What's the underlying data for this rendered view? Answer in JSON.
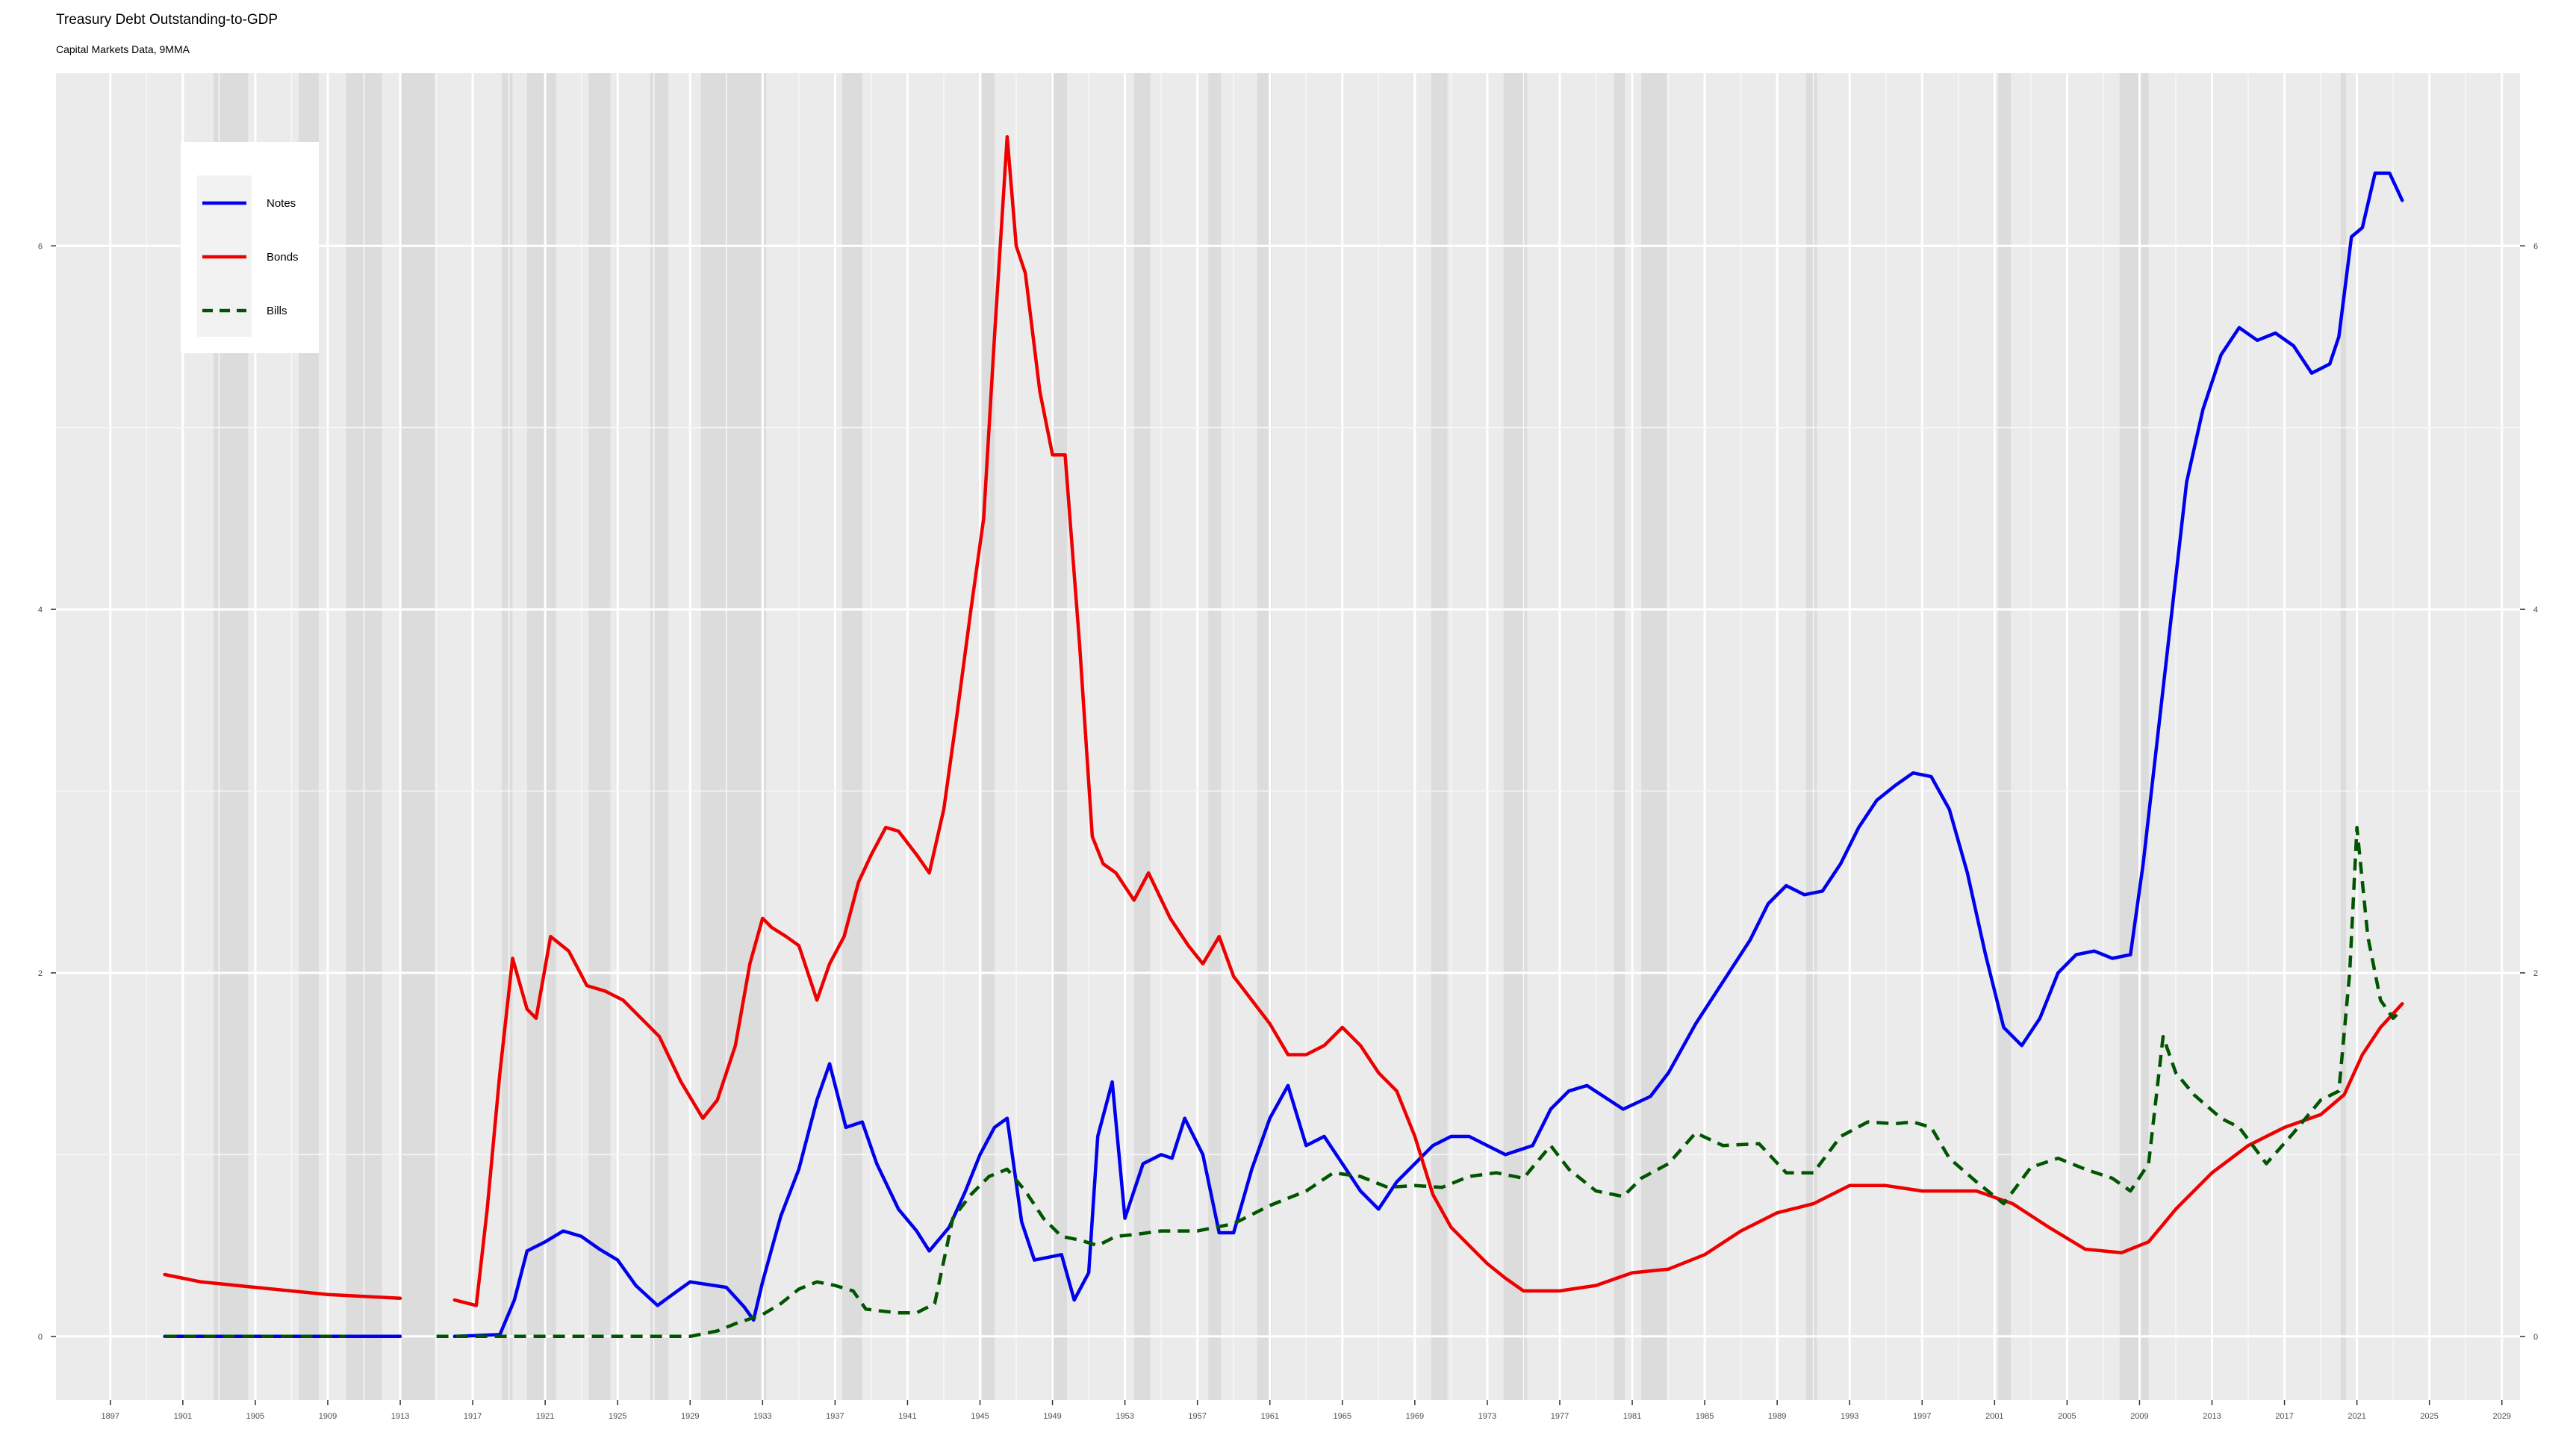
{
  "chart_data": {
    "type": "line",
    "title": "Treasury Debt Outstanding-to-GDP",
    "subtitle": "Capital Markets Data, 9MMA",
    "xlabel": "",
    "ylabel": "",
    "xlim": [
      1894,
      2030
    ],
    "ylim": [
      -0.35,
      6.95
    ],
    "x_ticks": [
      1897,
      1901,
      1905,
      1909,
      1913,
      1917,
      1921,
      1925,
      1929,
      1933,
      1937,
      1941,
      1945,
      1949,
      1953,
      1957,
      1961,
      1965,
      1969,
      1973,
      1977,
      1981,
      1985,
      1989,
      1993,
      1997,
      2001,
      2005,
      2009,
      2013,
      2017,
      2021,
      2025,
      2029
    ],
    "y_ticks": [
      0,
      2,
      4,
      6
    ],
    "grid": true,
    "legend_position": "top-left",
    "recessions": [
      [
        1902.7,
        1904.6
      ],
      [
        1907.4,
        1908.5
      ],
      [
        1910.0,
        1912.0
      ],
      [
        1913.0,
        1914.9
      ],
      [
        1918.6,
        1919.2
      ],
      [
        1920.0,
        1921.6
      ],
      [
        1923.4,
        1924.6
      ],
      [
        1926.8,
        1927.8
      ],
      [
        1929.6,
        1933.2
      ],
      [
        1937.4,
        1938.5
      ],
      [
        1945.1,
        1945.8
      ],
      [
        1948.9,
        1949.8
      ],
      [
        1953.5,
        1954.4
      ],
      [
        1957.6,
        1958.3
      ],
      [
        1960.3,
        1961.1
      ],
      [
        1969.9,
        1970.8
      ],
      [
        1973.9,
        1975.2
      ],
      [
        1980.0,
        1980.6
      ],
      [
        1981.5,
        1982.9
      ],
      [
        1990.6,
        1991.2
      ],
      [
        2001.2,
        2001.9
      ],
      [
        2007.9,
        2009.5
      ],
      [
        2020.1,
        2020.4
      ]
    ],
    "series": [
      {
        "name": "Notes",
        "color": "#0000ee",
        "dash": "solid",
        "x": [
          1900,
          1905,
          1910,
          1913,
          1916,
          1918.5,
          1919.3,
          1920,
          1921,
          1922,
          1923,
          1924,
          1925,
          1926,
          1927.2,
          1928.3,
          1929,
          1931,
          1932,
          1932.5,
          1933,
          1934,
          1935,
          1936,
          1936.7,
          1937.6,
          1938.5,
          1939.3,
          1940.5,
          1941.5,
          1942.2,
          1943.3,
          1944.2,
          1945,
          1945.8,
          1946.5,
          1947.3,
          1948,
          1949.5,
          1950.2,
          1951,
          1951.5,
          1952.3,
          1953,
          1954,
          1955,
          1955.6,
          1956.3,
          1957.3,
          1958.2,
          1959,
          1960,
          1961,
          1962,
          1963,
          1964,
          1965,
          1966,
          1967,
          1968,
          1969,
          1970,
          1971,
          1972,
          1973,
          1974,
          1975.5,
          1976.5,
          1977.5,
          1978.5,
          1980.5,
          1982,
          1983,
          1984.5,
          1986,
          1987.5,
          1988.5,
          1989.5,
          1990.5,
          1991.5,
          1992.5,
          1993.5,
          1994.5,
          1995.5,
          1996.5,
          1997.5,
          1998.5,
          1999.5,
          2000.5,
          2001.5,
          2002.5,
          2003.5,
          2004.5,
          2005.5,
          2006.5,
          2007.5,
          2008.5,
          2009.2,
          2010,
          2010.8,
          2011.6,
          2012.5,
          2013.5,
          2014.5,
          2015.5,
          2016.5,
          2017.5,
          2018.5,
          2019.5,
          2020,
          2020.7,
          2021.3,
          2022,
          2022.8,
          2023.5
        ],
        "y": [
          0.0,
          0.0,
          0.0,
          0.0,
          0.0,
          0.01,
          0.2,
          0.47,
          0.52,
          0.58,
          0.55,
          0.48,
          0.42,
          0.28,
          0.17,
          0.25,
          0.3,
          0.27,
          0.16,
          0.09,
          0.3,
          0.66,
          0.92,
          1.3,
          1.5,
          1.15,
          1.18,
          0.95,
          0.7,
          0.58,
          0.47,
          0.6,
          0.8,
          1.0,
          1.15,
          1.2,
          0.63,
          0.42,
          0.45,
          0.2,
          0.35,
          1.1,
          1.4,
          0.65,
          0.95,
          1.0,
          0.98,
          1.2,
          1.0,
          0.57,
          0.57,
          0.92,
          1.2,
          1.38,
          1.05,
          1.1,
          0.95,
          0.8,
          0.7,
          0.85,
          0.95,
          1.05,
          1.1,
          1.1,
          1.05,
          1.0,
          1.05,
          1.25,
          1.35,
          1.38,
          1.25,
          1.32,
          1.45,
          1.72,
          1.95,
          2.18,
          2.38,
          2.48,
          2.43,
          2.45,
          2.6,
          2.8,
          2.95,
          3.03,
          3.1,
          3.08,
          2.9,
          2.55,
          2.1,
          1.7,
          1.6,
          1.75,
          2.0,
          2.1,
          2.12,
          2.08,
          2.1,
          2.6,
          3.3,
          4.0,
          4.7,
          5.1,
          5.4,
          5.55,
          5.48,
          5.52,
          5.45,
          5.3,
          5.35,
          5.5,
          6.05,
          6.1,
          6.4,
          6.4,
          6.25
        ]
      },
      {
        "name": "Bonds",
        "color": "#ee0000",
        "dash": "solid",
        "x": [
          1900,
          1902,
          1905,
          1909,
          1913,
          1916,
          1917.2,
          1917.8,
          1918.5,
          1919.2,
          1920,
          1920.5,
          1921.3,
          1922.3,
          1923.3,
          1924.3,
          1925.3,
          1926.3,
          1927.3,
          1928.5,
          1929.7,
          1930.5,
          1931.5,
          1932.3,
          1933,
          1933.5,
          1934.3,
          1935,
          1936,
          1936.7,
          1937.5,
          1938.3,
          1939,
          1939.8,
          1940.5,
          1941.5,
          1942.2,
          1943,
          1943.7,
          1944.5,
          1945.2,
          1945.8,
          1946.5,
          1947,
          1947.5,
          1948.3,
          1949,
          1949.7,
          1950.5,
          1951.2,
          1951.8,
          1952.5,
          1953.5,
          1954.3,
          1955.5,
          1956.5,
          1957.3,
          1958.2,
          1959,
          1960,
          1961,
          1962,
          1963,
          1964,
          1965,
          1966,
          1967,
          1968,
          1969,
          1970,
          1971,
          1972,
          1973,
          1974,
          1975,
          1977,
          1979,
          1981,
          1983,
          1985,
          1987,
          1989,
          1991,
          1993,
          1995,
          1997,
          2000,
          2002,
          2004,
          2006,
          2008,
          2009.5,
          2011,
          2013,
          2015,
          2017,
          2019,
          2020.3,
          2021.3,
          2022.3,
          2023.5
        ],
        "y": [
          0.34,
          0.3,
          0.27,
          0.23,
          0.21,
          0.2,
          0.17,
          0.7,
          1.45,
          2.08,
          1.8,
          1.75,
          2.2,
          2.12,
          1.93,
          1.9,
          1.85,
          1.75,
          1.65,
          1.4,
          1.2,
          1.3,
          1.6,
          2.05,
          2.3,
          2.25,
          2.2,
          2.15,
          1.85,
          2.05,
          2.2,
          2.5,
          2.65,
          2.8,
          2.78,
          2.65,
          2.55,
          2.9,
          3.4,
          4.0,
          4.5,
          5.5,
          6.6,
          6.0,
          5.85,
          5.2,
          4.85,
          4.85,
          3.8,
          2.75,
          2.6,
          2.55,
          2.4,
          2.55,
          2.3,
          2.15,
          2.05,
          2.2,
          1.98,
          1.85,
          1.72,
          1.55,
          1.55,
          1.6,
          1.7,
          1.6,
          1.45,
          1.35,
          1.1,
          0.78,
          0.6,
          0.5,
          0.4,
          0.32,
          0.25,
          0.25,
          0.28,
          0.35,
          0.37,
          0.45,
          0.58,
          0.68,
          0.73,
          0.83,
          0.83,
          0.8,
          0.8,
          0.73,
          0.6,
          0.48,
          0.46,
          0.52,
          0.7,
          0.9,
          1.05,
          1.15,
          1.22,
          1.33,
          1.55,
          1.7,
          1.83
        ]
      },
      {
        "name": "Bills",
        "color": "#005500",
        "dash": "dashed",
        "x": [
          1900,
          1905,
          1910,
          1915,
          1920,
          1925,
          1929,
          1930.5,
          1931.5,
          1933,
          1934,
          1935,
          1936,
          1937,
          1938,
          1938.7,
          1939.5,
          1940.5,
          1941.5,
          1942.5,
          1943.5,
          1944.5,
          1945.5,
          1946.5,
          1947.5,
          1948.5,
          1949.5,
          1950.5,
          1951.5,
          1952.5,
          1953.5,
          1955,
          1957,
          1959,
          1961,
          1963,
          1964.5,
          1966,
          1967.5,
          1969,
          1970.5,
          1972,
          1973.5,
          1975,
          1976.5,
          1977.5,
          1979,
          1980.5,
          1981.5,
          1983,
          1984.5,
          1986,
          1988,
          1989.5,
          1991,
          1992.5,
          1994,
          1995.5,
          1996.5,
          1997.5,
          1998.5,
          2000,
          2001.5,
          2003,
          2004.5,
          2006,
          2007.5,
          2008.5,
          2009.5,
          2010.3,
          2011,
          2012,
          2013.5,
          2014.5,
          2016,
          2017.5,
          2019,
          2020,
          2020.6,
          2021,
          2021.6,
          2022.3,
          2023,
          2023.5
        ],
        "y": [
          0.0,
          0.0,
          0.0,
          0.0,
          0.0,
          0.0,
          0.0,
          0.03,
          0.07,
          0.12,
          0.18,
          0.26,
          0.3,
          0.28,
          0.25,
          0.15,
          0.14,
          0.13,
          0.13,
          0.18,
          0.65,
          0.78,
          0.88,
          0.92,
          0.8,
          0.65,
          0.55,
          0.53,
          0.5,
          0.55,
          0.56,
          0.58,
          0.58,
          0.62,
          0.72,
          0.8,
          0.9,
          0.88,
          0.82,
          0.83,
          0.82,
          0.88,
          0.9,
          0.87,
          1.05,
          0.92,
          0.8,
          0.77,
          0.87,
          0.95,
          1.12,
          1.05,
          1.06,
          0.9,
          0.9,
          1.1,
          1.18,
          1.17,
          1.18,
          1.15,
          0.98,
          0.85,
          0.73,
          0.93,
          0.98,
          0.92,
          0.87,
          0.8,
          0.95,
          1.65,
          1.45,
          1.33,
          1.2,
          1.15,
          0.95,
          1.12,
          1.3,
          1.35,
          2.0,
          2.8,
          2.2,
          1.85,
          1.75,
          1.8
        ]
      }
    ]
  }
}
